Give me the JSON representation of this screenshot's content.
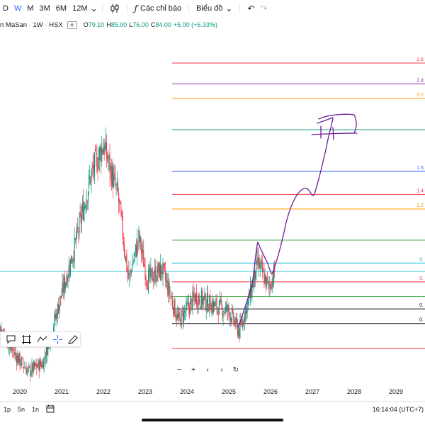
{
  "toolbar": {
    "timeframes": [
      {
        "label": "D",
        "active": false
      },
      {
        "label": "W",
        "active": true
      },
      {
        "label": "M",
        "active": false
      },
      {
        "label": "3M",
        "active": false
      },
      {
        "label": "6M",
        "active": false
      },
      {
        "label": "12M",
        "active": false
      }
    ],
    "chart_type_icon": "candles-icon",
    "indicators_label": "Các chỉ báo",
    "layout_label": "Biểu đồ",
    "undo_icon": "undo-icon",
    "redo_icon": "redo-icon"
  },
  "legend": {
    "symbol": "n MaSan · 1W · HSX",
    "o_label": "O",
    "o_val": "79.10",
    "h_label": "H",
    "h_val": "85.00",
    "l_label": "L",
    "l_val": "76.00",
    "c_label": "C",
    "c_val": "84.00",
    "change": "+5.00 (+6.33%)"
  },
  "fib_levels": [
    {
      "label": "2.6",
      "color": "#f23645",
      "price": 184
    },
    {
      "label": "2.4",
      "color": "#9c27b0",
      "price": 174
    },
    {
      "label": "2.2",
      "color": "#ff9800",
      "price": 167
    },
    {
      "label": "",
      "color": "#089981",
      "price": 152
    },
    {
      "label": "1.6",
      "color": "#2962ff",
      "price": 132
    },
    {
      "label": "1.4",
      "color": "#f23645",
      "price": 121
    },
    {
      "label": "1.2",
      "color": "#ff9800",
      "price": 114
    },
    {
      "label": "",
      "color": "#4caf50",
      "price": 99
    },
    {
      "label": "0.",
      "color": "#00bcd4",
      "price": 88
    },
    {
      "label": "0.",
      "color": "#f23645",
      "price": 79
    },
    {
      "label": "",
      "color": "#4caf50",
      "price": 72
    },
    {
      "label": "0.",
      "color": "#131722",
      "price": 66
    },
    {
      "label": "0.",
      "color": "#131722",
      "price": 59
    },
    {
      "label": "",
      "color": "#f23645",
      "price": 47
    }
  ],
  "chart_data": {
    "type": "candlestick",
    "x_axis": {
      "ticks": [
        "2020",
        "2021",
        "2022",
        "2023",
        "2024",
        "2025",
        "2026",
        "2027",
        "2028",
        "2029"
      ]
    },
    "y_range": [
      30,
      200
    ],
    "current_price": 84,
    "price_line_color": "#00bcd4",
    "up_color": "#089981",
    "down_color": "#f23645",
    "keypoints": [
      {
        "t": 2019.0,
        "p": 68
      },
      {
        "t": 2019.4,
        "p": 62
      },
      {
        "t": 2019.85,
        "p": 45
      },
      {
        "t": 2020.2,
        "p": 36
      },
      {
        "t": 2020.55,
        "p": 40
      },
      {
        "t": 2020.85,
        "p": 62
      },
      {
        "t": 2021.3,
        "p": 95
      },
      {
        "t": 2021.7,
        "p": 130
      },
      {
        "t": 2022.0,
        "p": 145
      },
      {
        "t": 2022.35,
        "p": 120
      },
      {
        "t": 2022.6,
        "p": 80
      },
      {
        "t": 2022.85,
        "p": 100
      },
      {
        "t": 2023.05,
        "p": 80
      },
      {
        "t": 2023.4,
        "p": 85
      },
      {
        "t": 2023.8,
        "p": 60
      },
      {
        "t": 2024.2,
        "p": 72
      },
      {
        "t": 2024.6,
        "p": 68
      },
      {
        "t": 2025.0,
        "p": 65
      },
      {
        "t": 2025.25,
        "p": 55
      },
      {
        "t": 2025.5,
        "p": 72
      },
      {
        "t": 2025.7,
        "p": 88
      },
      {
        "t": 2025.95,
        "p": 76
      },
      {
        "t": 2026.1,
        "p": 84
      }
    ]
  },
  "drawing_tools": [
    {
      "icon": "comment-icon"
    },
    {
      "icon": "crop-icon"
    },
    {
      "icon": "trend-path-icon"
    },
    {
      "icon": "crosshair-icon"
    },
    {
      "icon": "pen-icon"
    }
  ],
  "nav": {
    "zoom_out": "−",
    "zoom_in": "+",
    "scroll_left": "‹",
    "scroll_right": "›",
    "reset": "↻"
  },
  "bottom": {
    "ranges": [
      "1p",
      "5n",
      "1n"
    ],
    "calendar_icon": "calendar-icon",
    "clock": "16:14:04 (UTC+7)"
  }
}
